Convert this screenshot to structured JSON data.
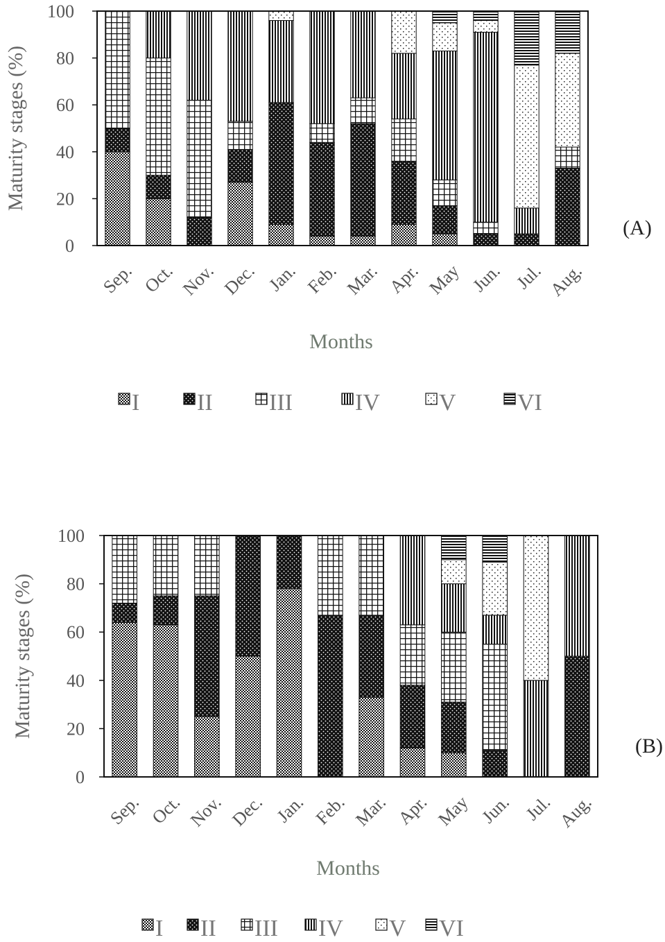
{
  "chart_data": [
    {
      "type": "bar",
      "stacked": true,
      "panel_label": "(A)",
      "xlabel": "Months",
      "ylabel": "Maturity  stages  (%)",
      "ylim": [
        0,
        100
      ],
      "yticks": [
        "0",
        "20",
        "40",
        "60",
        "80",
        "100"
      ],
      "grid": false,
      "legend_position": "bottom",
      "categories": [
        "Sep.",
        "Oct.",
        "Nov.",
        "Dec.",
        "Jan.",
        "Feb.",
        "Mar.",
        "Apr.",
        "May",
        "Jun.",
        "Jul.",
        "Aug."
      ],
      "series": [
        {
          "name": "I",
          "pattern": "dots-dense",
          "values": [
            40,
            20,
            0,
            27,
            9,
            4,
            4,
            9,
            5,
            0,
            0,
            0
          ]
        },
        {
          "name": "II",
          "pattern": "checker",
          "values": [
            10,
            10,
            12,
            14,
            52,
            40,
            48,
            27,
            12,
            5,
            5,
            33
          ]
        },
        {
          "name": "III",
          "pattern": "grid",
          "values": [
            50,
            50,
            50,
            12,
            0,
            8,
            11,
            18,
            11,
            5,
            0,
            9
          ]
        },
        {
          "name": "IV",
          "pattern": "vertical",
          "values": [
            0,
            20,
            38,
            47,
            35,
            48,
            37,
            28,
            55,
            81,
            11,
            0
          ]
        },
        {
          "name": "V",
          "pattern": "dots-sparse",
          "values": [
            0,
            0,
            0,
            0,
            4,
            0,
            0,
            18,
            12,
            5,
            61,
            40
          ]
        },
        {
          "name": "VI",
          "pattern": "horizontal",
          "values": [
            0,
            0,
            0,
            0,
            0,
            0,
            0,
            0,
            5,
            4,
            23,
            18
          ]
        }
      ]
    },
    {
      "type": "bar",
      "stacked": true,
      "panel_label": "(B)",
      "xlabel": "Months",
      "ylabel": "Maturity  stages  (%)",
      "ylim": [
        0,
        100
      ],
      "yticks": [
        "0",
        "20",
        "40",
        "60",
        "80",
        "100"
      ],
      "grid": false,
      "legend_position": "bottom",
      "categories": [
        "Sep.",
        "Oct.",
        "Nov.",
        "Dec.",
        "Jan.",
        "Feb.",
        "Mar.",
        "Apr.",
        "May",
        "Jun.",
        "Jul.",
        "Aug."
      ],
      "series": [
        {
          "name": "I",
          "pattern": "dots-dense",
          "values": [
            64,
            63,
            25,
            50,
            78,
            0,
            33,
            12,
            10,
            0,
            0,
            0
          ]
        },
        {
          "name": "II",
          "pattern": "checker",
          "values": [
            8,
            12,
            50,
            50,
            22,
            67,
            34,
            26,
            21,
            11,
            0,
            50
          ]
        },
        {
          "name": "III",
          "pattern": "grid",
          "values": [
            28,
            25,
            25,
            0,
            0,
            33,
            33,
            25,
            29,
            44,
            0,
            0
          ]
        },
        {
          "name": "IV",
          "pattern": "vertical",
          "values": [
            0,
            0,
            0,
            0,
            0,
            0,
            0,
            37,
            20,
            12,
            40,
            50
          ]
        },
        {
          "name": "V",
          "pattern": "dots-sparse",
          "values": [
            0,
            0,
            0,
            0,
            0,
            0,
            0,
            0,
            10,
            22,
            60,
            0
          ]
        },
        {
          "name": "VI",
          "pattern": "horizontal",
          "values": [
            0,
            0,
            0,
            0,
            0,
            0,
            0,
            0,
            10,
            11,
            0,
            0
          ]
        }
      ]
    }
  ]
}
